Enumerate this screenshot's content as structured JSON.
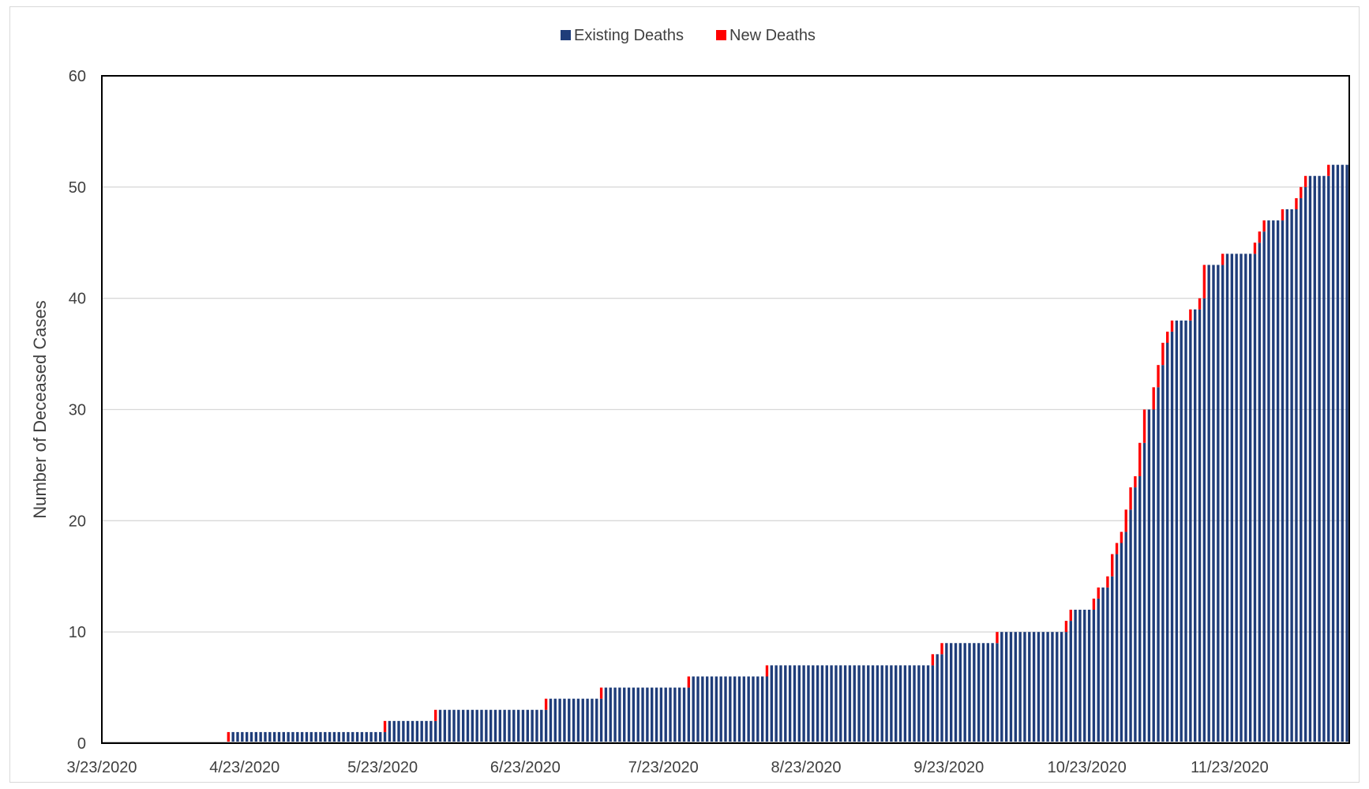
{
  "chart_data": {
    "type": "bar",
    "stacked": true,
    "title": "",
    "xlabel": "",
    "ylabel": "Number of Deceased Cases",
    "ylim": [
      0,
      60
    ],
    "yticks": [
      0,
      10,
      20,
      30,
      40,
      50,
      60
    ],
    "xtick_labels": [
      "3/23/2020",
      "4/23/2020",
      "5/23/2020",
      "6/23/2020",
      "7/23/2020",
      "8/23/2020",
      "9/23/2020",
      "10/23/2020",
      "11/23/2020"
    ],
    "x_start": "3/23/2020",
    "x_end": "12/18/2020",
    "grid": true,
    "legend_position": "top",
    "series": [
      {
        "name": "Existing Deaths",
        "color": "#1f3d7a"
      },
      {
        "name": "New Deaths",
        "color": "#ff0000"
      }
    ],
    "cumulative_deaths_events": [
      {
        "date": "4/19/2020",
        "total": 1
      },
      {
        "date": "5/23/2020",
        "total": 2
      },
      {
        "date": "6/3/2020",
        "total": 3
      },
      {
        "date": "6/27/2020",
        "total": 4
      },
      {
        "date": "7/9/2020",
        "total": 5
      },
      {
        "date": "7/28/2020",
        "total": 6
      },
      {
        "date": "8/14/2020",
        "total": 7
      },
      {
        "date": "9/19/2020",
        "total": 8
      },
      {
        "date": "9/21/2020",
        "total": 9
      },
      {
        "date": "10/3/2020",
        "total": 10
      },
      {
        "date": "10/18/2020",
        "total": 11
      },
      {
        "date": "10/19/2020",
        "total": 12
      },
      {
        "date": "10/24/2020",
        "total": 13
      },
      {
        "date": "10/25/2020",
        "total": 14
      },
      {
        "date": "10/27/2020",
        "total": 15
      },
      {
        "date": "10/28/2020",
        "total": 17
      },
      {
        "date": "10/29/2020",
        "total": 18
      },
      {
        "date": "10/30/2020",
        "total": 19
      },
      {
        "date": "10/31/2020",
        "total": 21
      },
      {
        "date": "11/1/2020",
        "total": 23
      },
      {
        "date": "11/2/2020",
        "total": 24
      },
      {
        "date": "11/3/2020",
        "total": 27
      },
      {
        "date": "11/4/2020",
        "total": 30
      },
      {
        "date": "11/6/2020",
        "total": 32
      },
      {
        "date": "11/7/2020",
        "total": 34
      },
      {
        "date": "11/8/2020",
        "total": 36
      },
      {
        "date": "11/9/2020",
        "total": 37
      },
      {
        "date": "11/10/2020",
        "total": 38
      },
      {
        "date": "11/14/2020",
        "total": 39
      },
      {
        "date": "11/16/2020",
        "total": 40
      },
      {
        "date": "11/17/2020",
        "total": 43
      },
      {
        "date": "11/21/2020",
        "total": 44
      },
      {
        "date": "11/28/2020",
        "total": 45
      },
      {
        "date": "11/29/2020",
        "total": 46
      },
      {
        "date": "11/30/2020",
        "total": 47
      },
      {
        "date": "12/4/2020",
        "total": 48
      },
      {
        "date": "12/7/2020",
        "total": 49
      },
      {
        "date": "12/8/2020",
        "total": 50
      },
      {
        "date": "12/9/2020",
        "total": 51
      },
      {
        "date": "12/14/2020",
        "total": 52
      }
    ]
  }
}
